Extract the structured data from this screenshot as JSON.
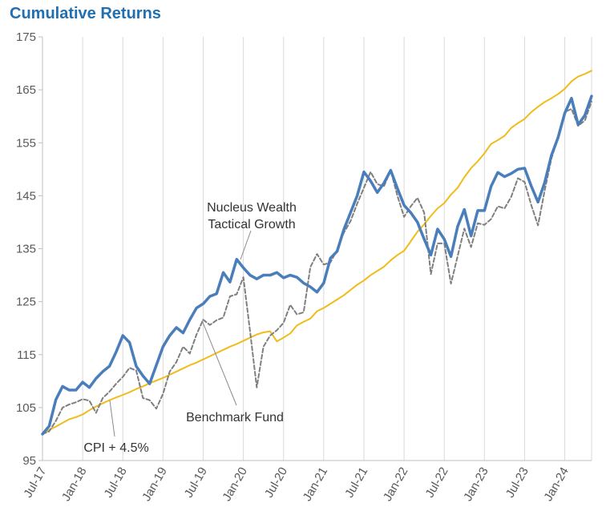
{
  "chart_data": {
    "type": "line",
    "title": "Cumulative Returns",
    "xlabel": "",
    "ylabel": "",
    "ylim": [
      95,
      175
    ],
    "yticks": [
      95,
      105,
      115,
      125,
      135,
      145,
      155,
      165,
      175
    ],
    "xtick_labels": [
      "Jul-17",
      "Jan-18",
      "Jul-18",
      "Jan-19",
      "Jul-19",
      "Jan-20",
      "Jul-20",
      "Jan-21",
      "Jul-21",
      "Jan-22",
      "Jul-22",
      "Jan-23",
      "Jul-23",
      "Jan-24"
    ],
    "months_per_tick": 6,
    "grid": "vertical",
    "annotations": [
      {
        "label_lines": [
          "Nucleus Wealth",
          "Tactical Growth"
        ],
        "series": "Nucleus Wealth Tactical Growth"
      },
      {
        "label_lines": [
          "Benchmark Fund"
        ],
        "series": "Benchmark Fund"
      },
      {
        "label_lines": [
          "CPI + 4.5%"
        ],
        "series": "CPI + 4.5%"
      }
    ],
    "series": [
      {
        "name": "Nucleus Wealth Tactical Growth",
        "color": "#4a7ebb",
        "style": "solid-thick",
        "values": [
          100,
          101.5,
          106.5,
          109,
          108.3,
          108.3,
          109.8,
          108.8,
          110.5,
          111.8,
          112.8,
          115.5,
          118.6,
          117.3,
          112.8,
          111,
          109.5,
          113,
          116.5,
          118.6,
          120.1,
          119.1,
          121.6,
          123.8,
          124.6,
          126,
          126.5,
          130.5,
          128.7,
          133,
          131.4,
          130,
          129.3,
          130,
          130,
          130.5,
          129.5,
          130,
          129.6,
          128.5,
          127.8,
          126.8,
          128.5,
          133.2,
          134.5,
          138.6,
          141.8,
          145,
          149.5,
          147.8,
          145.6,
          147.4,
          149.8,
          146.4,
          143.2,
          141.8,
          140,
          136.8,
          133.8,
          138.7,
          136.8,
          133.5,
          139.2,
          142.4,
          137.4,
          142.2,
          142.2,
          146.8,
          149.4,
          148.6,
          149.2,
          150,
          150.2,
          146.8,
          143.8,
          147.5,
          152.6,
          156,
          160.6,
          163.4,
          158.4,
          160.2,
          163.8
        ]
      },
      {
        "name": "Benchmark Fund",
        "color": "#7f7f7f",
        "style": "dashed",
        "values": [
          100,
          100.5,
          102.5,
          105,
          105.6,
          106,
          106.6,
          106.3,
          104,
          106.8,
          108,
          109.5,
          110.8,
          112.5,
          112,
          106.8,
          106.4,
          104.8,
          107.6,
          111.8,
          113.6,
          116.5,
          115.2,
          118.8,
          121.6,
          120.6,
          121.5,
          122,
          126,
          126.4,
          129.6,
          119.4,
          108.8,
          116.5,
          118.6,
          119.6,
          121,
          124.4,
          122.6,
          123,
          131.5,
          134,
          132,
          132.4,
          134.8,
          138,
          140.2,
          143.5,
          146.5,
          149.5,
          147.2,
          146.8,
          149.8,
          145,
          141,
          143,
          144.6,
          141.8,
          130.2,
          136,
          136,
          128.4,
          133.6,
          138.8,
          135.3,
          139.8,
          139.5,
          140.6,
          143,
          142.6,
          144.8,
          148.3,
          147.6,
          143.2,
          139.4,
          146,
          152,
          156,
          160.8,
          161.4,
          158.2,
          159.2,
          162.8
        ]
      },
      {
        "name": "CPI + 4.5%",
        "color": "#f0bc1c",
        "style": "solid",
        "values": [
          100,
          100.8,
          101.4,
          102.1,
          102.8,
          103.2,
          103.7,
          104.5,
          105.2,
          105.8,
          106.4,
          106.9,
          107.4,
          107.9,
          108.5,
          109,
          109.6,
          110.1,
          110.6,
          111.2,
          111.8,
          112.4,
          113,
          113.5,
          114.1,
          114.7,
          115.3,
          115.9,
          116.5,
          117,
          117.6,
          118.2,
          118.8,
          119.2,
          119.4,
          117.5,
          118.2,
          119,
          120.5,
          121.2,
          121.8,
          123.2,
          123.8,
          124.6,
          125.4,
          126.2,
          127.2,
          128.2,
          129,
          130,
          130.8,
          131.6,
          132.8,
          133.8,
          134.6,
          136.4,
          138.2,
          139.6,
          141.2,
          142.6,
          143.6,
          145.2,
          146.5,
          148.5,
          150.2,
          151.5,
          153,
          154.8,
          155.5,
          156.3,
          157.8,
          158.7,
          159.5,
          160.8,
          161.8,
          162.7,
          163.4,
          164.2,
          165.2,
          166.6,
          167.5,
          168,
          168.6
        ]
      }
    ]
  }
}
